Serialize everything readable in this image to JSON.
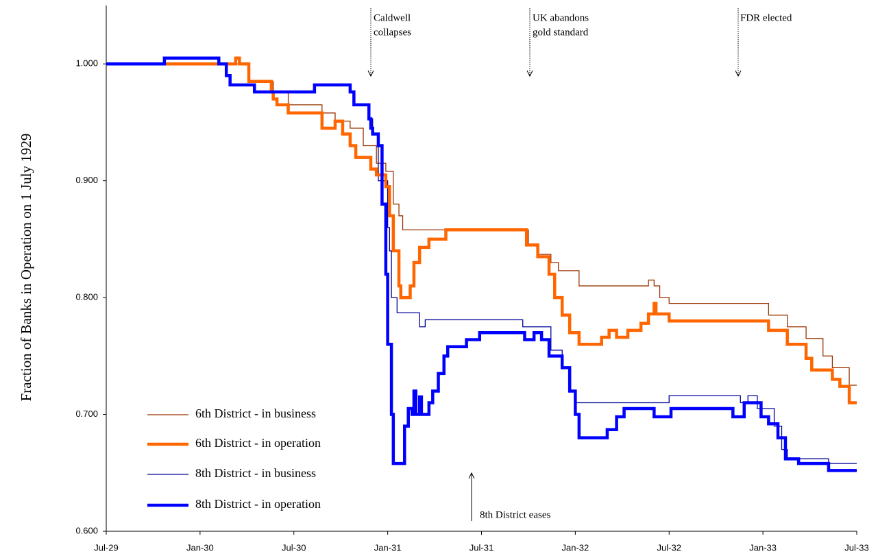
{
  "chart_data": {
    "type": "line",
    "step": true,
    "y_label": "Fraction of Banks in Operation on 1 July 1929",
    "xlim": [
      1929.5,
      1933.5
    ],
    "xticks": [
      {
        "value": 1929.5,
        "label": "Jul-29"
      },
      {
        "value": 1930.0,
        "label": "Jan-30"
      },
      {
        "value": 1930.5,
        "label": "Jul-30"
      },
      {
        "value": 1931.0,
        "label": "Jan-31"
      },
      {
        "value": 1931.5,
        "label": "Jul-31"
      },
      {
        "value": 1932.0,
        "label": "Jan-32"
      },
      {
        "value": 1932.5,
        "label": "Jul-32"
      },
      {
        "value": 1933.0,
        "label": "Jan-33"
      },
      {
        "value": 1933.5,
        "label": "Jul-33"
      }
    ],
    "ylim": [
      0.6,
      1.05
    ],
    "yticks": [
      {
        "value": 0.6,
        "label": "0.600"
      },
      {
        "value": 0.7,
        "label": "0.700"
      },
      {
        "value": 0.8,
        "label": "0.800"
      },
      {
        "value": 0.9,
        "label": "0.900"
      },
      {
        "value": 1.0,
        "label": "1.000"
      }
    ],
    "legend": "lower left",
    "annotations": [
      {
        "lines": [
          "Caldwell",
          "collapses"
        ],
        "arrow": "down"
      },
      {
        "lines": [
          "UK abandons",
          "gold standard"
        ],
        "arrow": "down"
      },
      {
        "lines": [
          "FDR elected"
        ],
        "arrow": "down"
      },
      {
        "lines": [
          "8th District eases"
        ],
        "arrow": "up"
      }
    ],
    "series": [
      {
        "name": "6th District - in business",
        "color": "#993300",
        "line_width": 1.3,
        "x": [
          1929.5,
          1930.1,
          1930.26,
          1930.39,
          1930.47,
          1930.65,
          1930.72,
          1930.8,
          1930.87,
          1930.94,
          1930.99,
          1931.03,
          1931.06,
          1931.08,
          1931.73,
          1931.75,
          1931.8,
          1931.87,
          1931.91,
          1932.02,
          1932.37,
          1932.39,
          1932.42,
          1932.45,
          1932.5,
          1932.95,
          1933.03,
          1933.13,
          1933.23,
          1933.32,
          1933.37,
          1933.46,
          1933.5
        ],
        "values": [
          1.0,
          1.0,
          0.985,
          0.976,
          0.965,
          0.958,
          0.951,
          0.945,
          0.93,
          0.915,
          0.908,
          0.88,
          0.87,
          0.858,
          0.858,
          0.845,
          0.837,
          0.83,
          0.823,
          0.81,
          0.81,
          0.815,
          0.81,
          0.8,
          0.795,
          0.795,
          0.785,
          0.775,
          0.765,
          0.75,
          0.74,
          0.725,
          0.725
        ]
      },
      {
        "name": "6th District - in operation",
        "color": "#ff6600",
        "line_width": 4.5,
        "x": [
          1929.5,
          1930.19,
          1930.21,
          1930.26,
          1930.38,
          1930.39,
          1930.41,
          1930.47,
          1930.65,
          1930.72,
          1930.76,
          1930.8,
          1930.83,
          1930.91,
          1930.94,
          1930.99,
          1931.01,
          1931.03,
          1931.06,
          1931.07,
          1931.12,
          1931.14,
          1931.17,
          1931.22,
          1931.31,
          1931.73,
          1931.74,
          1931.8,
          1931.86,
          1931.89,
          1931.93,
          1931.97,
          1932.02,
          1932.14,
          1932.18,
          1932.22,
          1932.28,
          1932.35,
          1932.39,
          1932.42,
          1932.43,
          1932.5,
          1932.95,
          1933.03,
          1933.13,
          1933.23,
          1933.26,
          1933.37,
          1933.41,
          1933.46,
          1933.5
        ],
        "values": [
          1.0,
          1.005,
          1.0,
          0.985,
          0.976,
          0.97,
          0.965,
          0.958,
          0.945,
          0.951,
          0.94,
          0.93,
          0.92,
          0.91,
          0.905,
          0.895,
          0.87,
          0.84,
          0.81,
          0.8,
          0.81,
          0.83,
          0.843,
          0.85,
          0.858,
          0.858,
          0.845,
          0.835,
          0.82,
          0.8,
          0.785,
          0.77,
          0.76,
          0.766,
          0.772,
          0.766,
          0.772,
          0.778,
          0.786,
          0.795,
          0.786,
          0.78,
          0.78,
          0.772,
          0.76,
          0.748,
          0.738,
          0.73,
          0.724,
          0.71,
          0.71
        ]
      },
      {
        "name": "8th District - in business",
        "color": "#000099",
        "line_width": 1.3,
        "x": [
          1929.5,
          1929.81,
          1930.1,
          1930.14,
          1930.16,
          1930.29,
          1930.61,
          1930.8,
          1930.82,
          1930.9,
          1930.92,
          1930.95,
          1931.0,
          1931.01,
          1931.02,
          1931.05,
          1931.17,
          1931.2,
          1931.72,
          1931.87,
          1931.93,
          1931.97,
          1932.0,
          1932.5,
          1932.88,
          1932.92,
          1932.93,
          1932.97,
          1932.99,
          1933.06,
          1933.1,
          1933.13,
          1933.35,
          1933.5
        ],
        "values": [
          1.0,
          1.005,
          1.0,
          0.99,
          0.982,
          0.976,
          0.982,
          0.976,
          0.965,
          0.953,
          0.94,
          0.9,
          0.86,
          0.84,
          0.8,
          0.787,
          0.775,
          0.781,
          0.775,
          0.755,
          0.74,
          0.72,
          0.71,
          0.716,
          0.71,
          0.716,
          0.716,
          0.705,
          0.705,
          0.69,
          0.67,
          0.662,
          0.658,
          0.658
        ]
      },
      {
        "name": "8th District - in operation",
        "color": "#0000ff",
        "line_width": 4.5,
        "x": [
          1929.5,
          1929.81,
          1930.1,
          1930.14,
          1930.16,
          1930.29,
          1930.61,
          1930.8,
          1930.82,
          1930.9,
          1930.91,
          1930.92,
          1930.95,
          1930.97,
          1930.99,
          1931.0,
          1931.02,
          1931.03,
          1931.07,
          1931.09,
          1931.11,
          1931.13,
          1931.14,
          1931.15,
          1931.17,
          1931.18,
          1931.22,
          1931.24,
          1931.27,
          1931.3,
          1931.32,
          1931.4,
          1931.42,
          1931.49,
          1931.71,
          1931.73,
          1931.78,
          1931.82,
          1931.86,
          1931.93,
          1931.97,
          1932.0,
          1932.02,
          1932.13,
          1932.17,
          1932.22,
          1932.26,
          1932.4,
          1932.42,
          1932.51,
          1932.82,
          1932.84,
          1932.9,
          1932.95,
          1932.99,
          1933.03,
          1933.08,
          1933.12,
          1933.19,
          1933.35,
          1933.5
        ],
        "values": [
          1.0,
          1.005,
          1.0,
          0.99,
          0.982,
          0.976,
          0.982,
          0.976,
          0.965,
          0.953,
          0.945,
          0.94,
          0.93,
          0.88,
          0.82,
          0.76,
          0.7,
          0.658,
          0.658,
          0.69,
          0.705,
          0.7,
          0.72,
          0.7,
          0.715,
          0.7,
          0.71,
          0.72,
          0.735,
          0.75,
          0.758,
          0.758,
          0.764,
          0.77,
          0.77,
          0.764,
          0.77,
          0.764,
          0.75,
          0.74,
          0.72,
          0.7,
          0.68,
          0.68,
          0.687,
          0.698,
          0.705,
          0.705,
          0.698,
          0.705,
          0.705,
          0.698,
          0.71,
          0.71,
          0.698,
          0.692,
          0.68,
          0.662,
          0.658,
          0.652,
          0.652
        ]
      }
    ]
  }
}
